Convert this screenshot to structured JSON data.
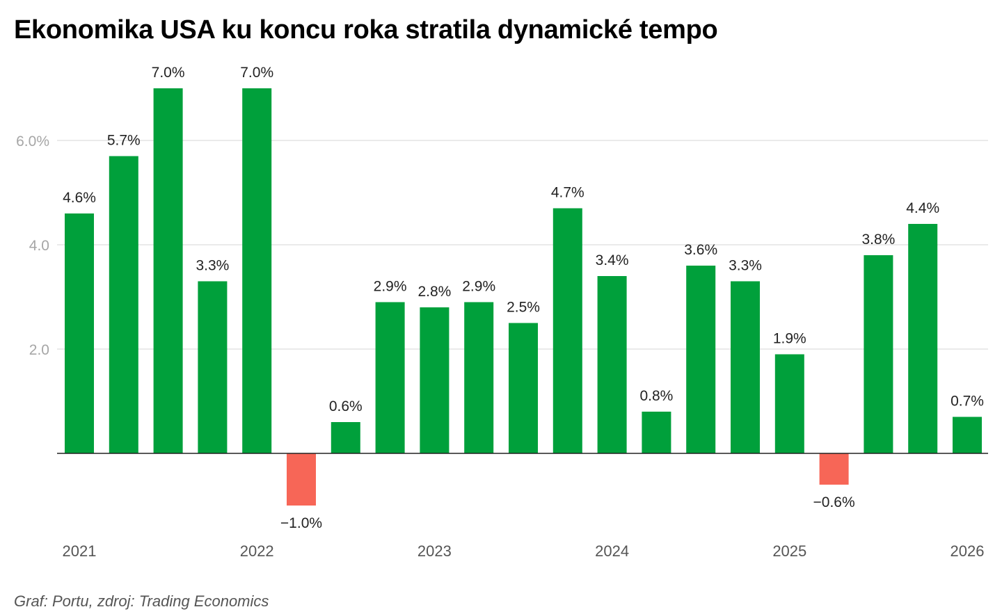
{
  "title": "Ekonomika USA ku koncu roka stratila dynamické tempo",
  "source": "Graf: Portu, zdroj: Trading Economics",
  "colors": {
    "positive": "#00A03B",
    "negative": "#F76657",
    "grid": "#e3e3e3",
    "axis": "#222222"
  },
  "chart_data": {
    "type": "bar",
    "title": "Ekonomika USA ku koncu roka stratila dynamické tempo",
    "xlabel": "",
    "ylabel": "",
    "ylim": [
      -1.0,
      7.0
    ],
    "grid": true,
    "yticks": [
      {
        "value": 2,
        "label": "2.0"
      },
      {
        "value": 4,
        "label": "4.0"
      },
      {
        "value": 6,
        "label": "6.0%"
      }
    ],
    "xticks": [
      {
        "index": 0,
        "label": "2021"
      },
      {
        "index": 4,
        "label": "2022"
      },
      {
        "index": 8,
        "label": "2023"
      },
      {
        "index": 12,
        "label": "2024"
      },
      {
        "index": 16,
        "label": "2025"
      },
      {
        "index": 20,
        "label": "2026"
      }
    ],
    "values": [
      4.6,
      5.7,
      7.0,
      3.3,
      7.0,
      -1.0,
      0.6,
      2.9,
      2.8,
      2.9,
      2.5,
      4.7,
      3.4,
      0.8,
      3.6,
      3.3,
      1.9,
      -0.6,
      3.8,
      4.4,
      0.7
    ],
    "labels": [
      "4.6%",
      "5.7%",
      "7.0%",
      "3.3%",
      "7.0%",
      "−1.0%",
      "0.6%",
      "2.9%",
      "2.8%",
      "2.9%",
      "2.5%",
      "4.7%",
      "3.4%",
      "0.8%",
      "3.6%",
      "3.3%",
      "1.9%",
      "−0.6%",
      "3.8%",
      "4.4%",
      "0.7%"
    ]
  }
}
